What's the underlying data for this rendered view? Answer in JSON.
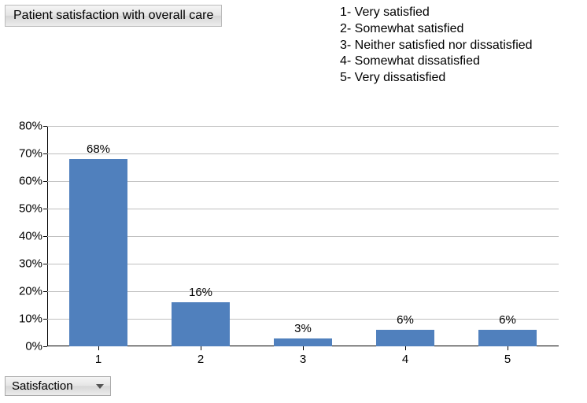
{
  "title": "Patient satisfaction with overall care",
  "legend": [
    "1- Very satisfied",
    "2- Somewhat satisfied",
    "3- Neither satisfied nor dissatisfied",
    "4- Somewhat dissatisfied",
    "5- Very dissatisfied"
  ],
  "chart": {
    "type": "bar",
    "categories": [
      "1",
      "2",
      "3",
      "4",
      "5"
    ],
    "values": [
      68,
      16,
      3,
      6,
      6
    ],
    "value_labels": [
      "68%",
      "16%",
      "3%",
      "6%",
      "6%"
    ],
    "bar_color": "#5080bd",
    "y_ticks": [
      0,
      10,
      20,
      30,
      40,
      50,
      60,
      70,
      80
    ],
    "y_tick_labels": [
      "0%",
      "10%",
      "20%",
      "30%",
      "40%",
      "50%",
      "60%",
      "70%",
      "80%"
    ],
    "y_max": 80,
    "grid_color": "#bfbfbf",
    "axis_color": "#000000",
    "background_color": "#ffffff",
    "bar_width_ratio": 0.57,
    "label_fontsize": 15
  },
  "dropdown": {
    "selected": "Satisfaction"
  }
}
